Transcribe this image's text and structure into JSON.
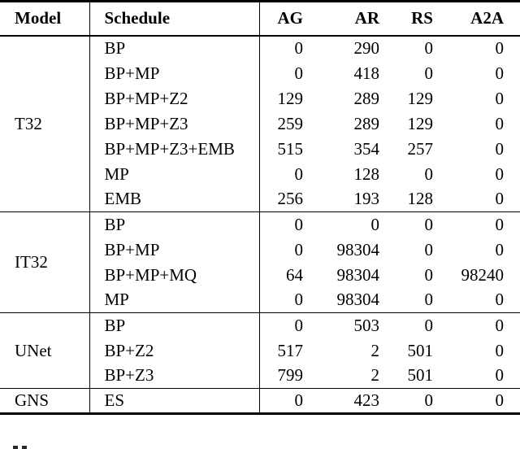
{
  "table": {
    "columns": [
      "Model",
      "Schedule",
      "AG",
      "AR",
      "RS",
      "A2A"
    ],
    "sections": [
      {
        "model": "T32",
        "rows": [
          {
            "schedule": "BP",
            "values": [
              "0",
              "290",
              "0",
              "0"
            ]
          },
          {
            "schedule": "BP+MP",
            "values": [
              "0",
              "418",
              "0",
              "0"
            ]
          },
          {
            "schedule": "BP+MP+Z2",
            "values": [
              "129",
              "289",
              "129",
              "0"
            ]
          },
          {
            "schedule": "BP+MP+Z3",
            "values": [
              "259",
              "289",
              "129",
              "0"
            ]
          },
          {
            "schedule": "BP+MP+Z3+EMB",
            "values": [
              "515",
              "354",
              "257",
              "0"
            ]
          },
          {
            "schedule": "MP",
            "values": [
              "0",
              "128",
              "0",
              "0"
            ]
          },
          {
            "schedule": "EMB",
            "values": [
              "256",
              "193",
              "128",
              "0"
            ]
          }
        ]
      },
      {
        "model": "IT32",
        "rows": [
          {
            "schedule": "BP",
            "values": [
              "0",
              "0",
              "0",
              "0"
            ]
          },
          {
            "schedule": "BP+MP",
            "values": [
              "0",
              "98304",
              "0",
              "0"
            ]
          },
          {
            "schedule": "BP+MP+MQ",
            "values": [
              "64",
              "98304",
              "0",
              "98240"
            ]
          },
          {
            "schedule": "MP",
            "values": [
              "0",
              "98304",
              "0",
              "0"
            ]
          }
        ]
      },
      {
        "model": "UNet",
        "rows": [
          {
            "schedule": "BP",
            "values": [
              "0",
              "503",
              "0",
              "0"
            ]
          },
          {
            "schedule": "BP+Z2",
            "values": [
              "517",
              "2",
              "501",
              "0"
            ]
          },
          {
            "schedule": "BP+Z3",
            "values": [
              "799",
              "2",
              "501",
              "0"
            ]
          }
        ]
      },
      {
        "model": "GNS",
        "rows": [
          {
            "schedule": "ES",
            "values": [
              "0",
              "423",
              "0",
              "0"
            ]
          }
        ]
      }
    ]
  }
}
